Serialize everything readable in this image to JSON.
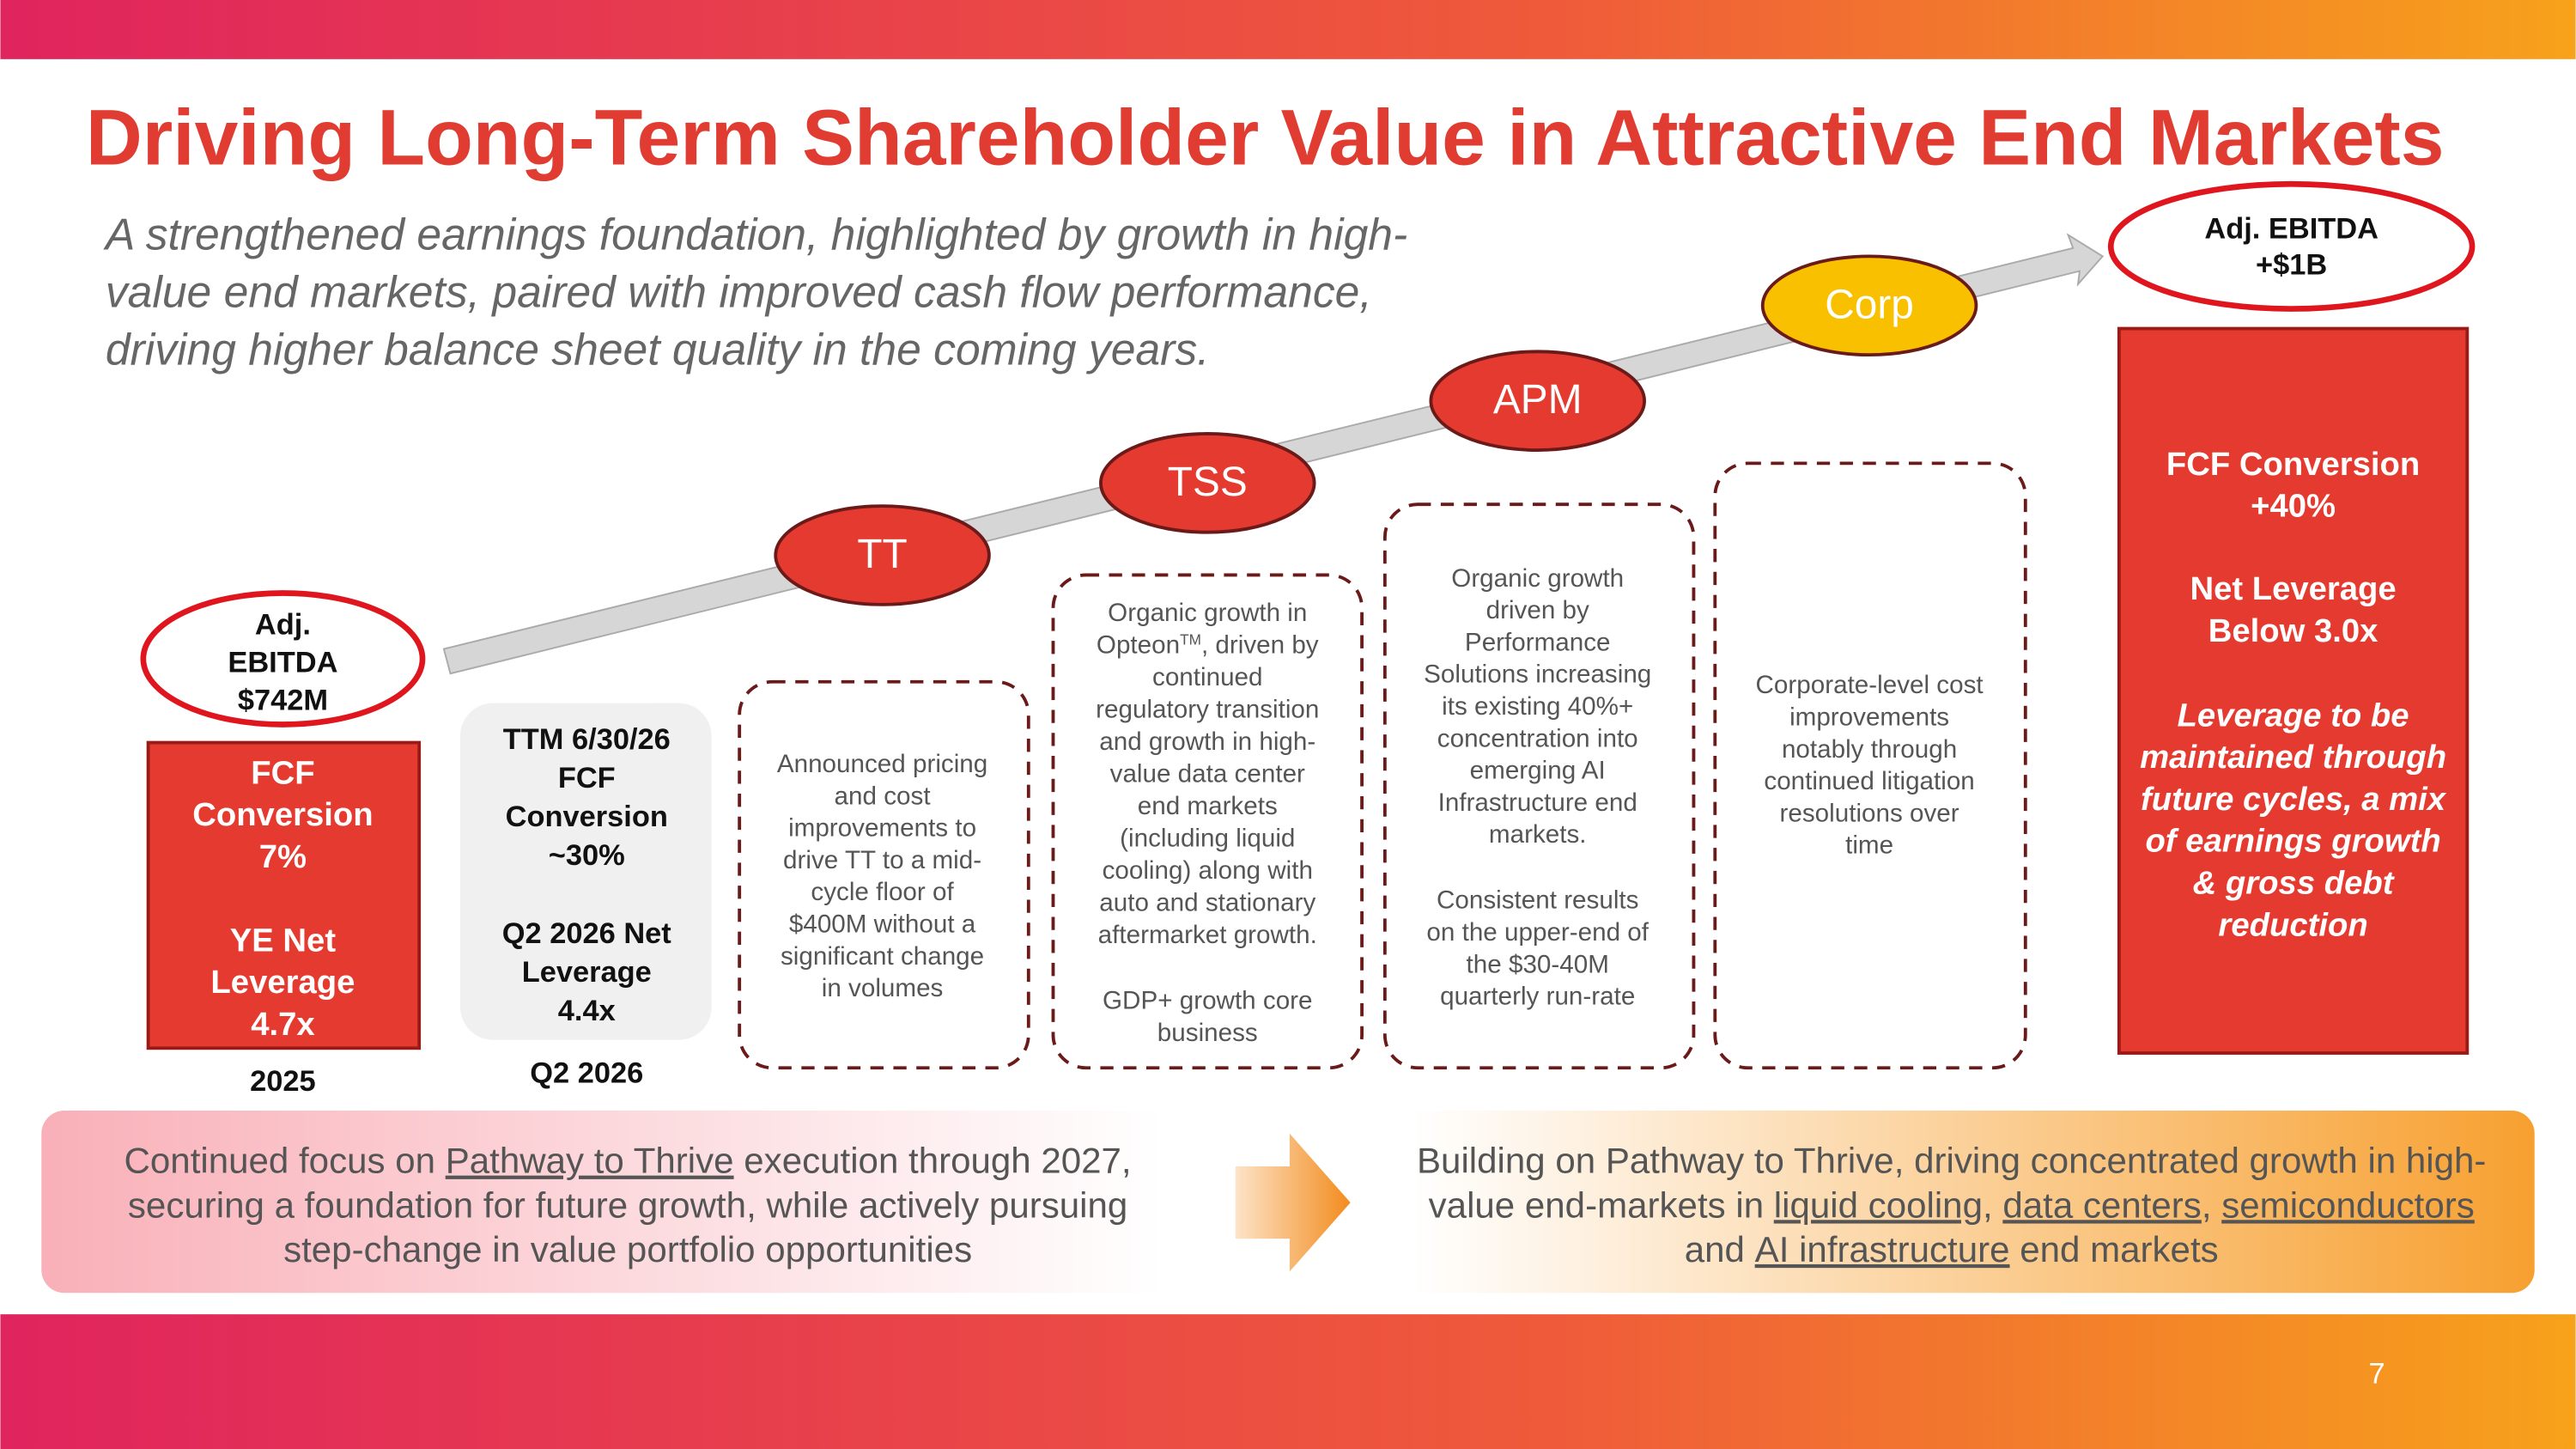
{
  "header": {
    "title": "Driving Long-Term Shareholder Value in Attractive End Markets",
    "subtitle": [
      "A strengthened earnings foundation, highlighted by growth in high-",
      "value end markets, paired with improved cash flow performance,",
      "driving higher balance sheet quality in the coming years."
    ]
  },
  "start": {
    "ebitda": [
      "Adj.",
      "EBITDA",
      "$742M"
    ],
    "fcf": [
      "FCF",
      "Conversion",
      "7%"
    ],
    "leverage": [
      "YE Net",
      "Leverage",
      "4.7x"
    ],
    "label": "2025"
  },
  "current": {
    "fcf": [
      "TTM 6/30/26",
      "FCF",
      "Conversion",
      "~30%"
    ],
    "leverage": [
      "Q2 2026 Net",
      "Leverage",
      "4.4x"
    ],
    "label": "Q2 2026"
  },
  "segments": [
    {
      "name": "TT",
      "lines_a": [
        "Announced pricing",
        "and cost",
        "improvements to",
        "drive TT to a mid-",
        "cycle floor of",
        "$400M without a",
        "significant change",
        "in volumes"
      ]
    },
    {
      "name": "TSS",
      "lines_a": [
        "Organic growth in",
        [
          "Opteon",
          "TM",
          ", driven by"
        ],
        "continued",
        "regulatory transition",
        "and growth in high-",
        "value data center",
        "end markets",
        "(including liquid",
        "cooling) along with",
        "auto and stationary",
        "aftermarket growth."
      ],
      "lines_b": [
        "GDP+ growth core",
        "business"
      ]
    },
    {
      "name": "APM",
      "lines_a": [
        "Organic growth",
        "driven by",
        "Performance",
        "Solutions increasing",
        "its existing 40%+",
        "concentration into",
        "emerging AI",
        "Infrastructure end",
        "markets."
      ],
      "lines_b": [
        "Consistent results",
        "on the upper-end of",
        "the $30-40M",
        "quarterly run-rate"
      ]
    },
    {
      "name": "Corp",
      "lines_a": [
        "Corporate-level cost",
        "improvements",
        "notably through",
        "continued litigation",
        "resolutions over",
        "time"
      ]
    }
  ],
  "target": {
    "ebitda": [
      "Adj. EBITDA",
      "+$1B"
    ],
    "fcf": [
      "FCF Conversion",
      "+40%"
    ],
    "leverage": [
      "Net Leverage",
      "Below 3.0x"
    ],
    "note": [
      "Leverage to be",
      "maintained through",
      "future cycles, a mix",
      "of earnings growth",
      "& gross debt",
      "reduction"
    ]
  },
  "banner": {
    "left": [
      [
        "Continued focus on ",
        "Pathway to Thrive",
        " execution through 2027,"
      ],
      "securing a foundation for future growth, while actively pursuing",
      "step-change in value portfolio opportunities"
    ],
    "right": [
      "Building on Pathway to Thrive, driving concentrated growth in high-",
      [
        "value end-markets in ",
        "liquid cooling",
        ", ",
        "data centers",
        ", ",
        "semiconductors"
      ],
      [
        "and ",
        "AI infrastructure",
        " end markets"
      ]
    ]
  },
  "page_number": "7"
}
